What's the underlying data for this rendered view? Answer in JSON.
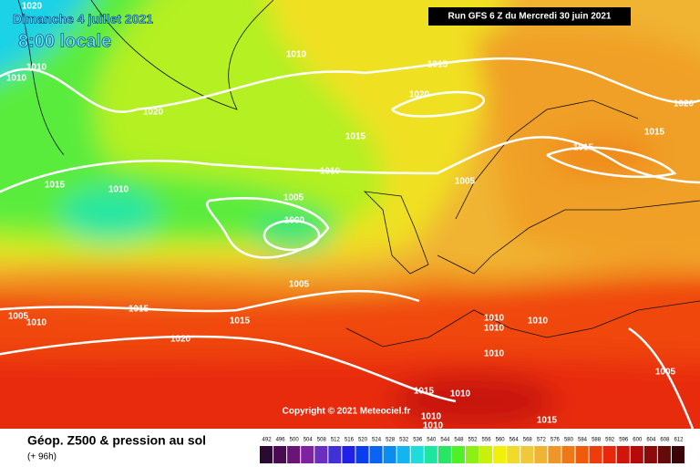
{
  "header": {
    "date": "Dimanche 4 juillet 2021",
    "time": "8:00 locale",
    "run": "Run GFS 6 Z du Mercredi 30 juin 2021"
  },
  "copyright": "Copyright © 2021 Meteociel.fr",
  "isobar_labels": [
    1020,
    1010,
    1010,
    1010,
    1015,
    1020,
    1020,
    1015,
    1015,
    1015,
    1020,
    1010,
    1005,
    1015,
    1010,
    1005,
    1000,
    1005,
    1015,
    1015,
    1005,
    1010,
    1020,
    1010,
    1010,
    1010,
    1010,
    1005,
    1015,
    1010,
    1010,
    1010,
    1015
  ],
  "legend": {
    "title": "Géop. Z500 & pression au sol",
    "subtitle": "(+ 96h)",
    "scale": [
      {
        "label": 492,
        "color": "#2a0a30"
      },
      {
        "label": 496,
        "color": "#4a0c50"
      },
      {
        "label": 500,
        "color": "#6a1478"
      },
      {
        "label": 504,
        "color": "#7e22a0"
      },
      {
        "label": 508,
        "color": "#6a2ec0"
      },
      {
        "label": 512,
        "color": "#4030d8"
      },
      {
        "label": 516,
        "color": "#2020e8"
      },
      {
        "label": 520,
        "color": "#0a3cf0"
      },
      {
        "label": 524,
        "color": "#0a64f0"
      },
      {
        "label": 528,
        "color": "#0a8cf0"
      },
      {
        "label": 532,
        "color": "#14b4f0"
      },
      {
        "label": 536,
        "color": "#1edcdc"
      },
      {
        "label": 540,
        "color": "#1ee6a0"
      },
      {
        "label": 544,
        "color": "#28e664"
      },
      {
        "label": 548,
        "color": "#50f028"
      },
      {
        "label": 552,
        "color": "#8cf014"
      },
      {
        "label": 556,
        "color": "#c8f00a"
      },
      {
        "label": 560,
        "color": "#f0f00a"
      },
      {
        "label": 564,
        "color": "#f0dc28"
      },
      {
        "label": 568,
        "color": "#f0c83c"
      },
      {
        "label": 572,
        "color": "#f0b432"
      },
      {
        "label": 576,
        "color": "#f09628"
      },
      {
        "label": 580,
        "color": "#f07814"
      },
      {
        "label": 584,
        "color": "#f05a0a"
      },
      {
        "label": 588,
        "color": "#f03c0a"
      },
      {
        "label": 592,
        "color": "#e8280a"
      },
      {
        "label": 596,
        "color": "#d2140a"
      },
      {
        "label": 600,
        "color": "#b40a0a"
      },
      {
        "label": 604,
        "color": "#8c0a0a"
      },
      {
        "label": 608,
        "color": "#640a0a"
      },
      {
        "label": 612,
        "color": "#3c0505"
      }
    ]
  }
}
